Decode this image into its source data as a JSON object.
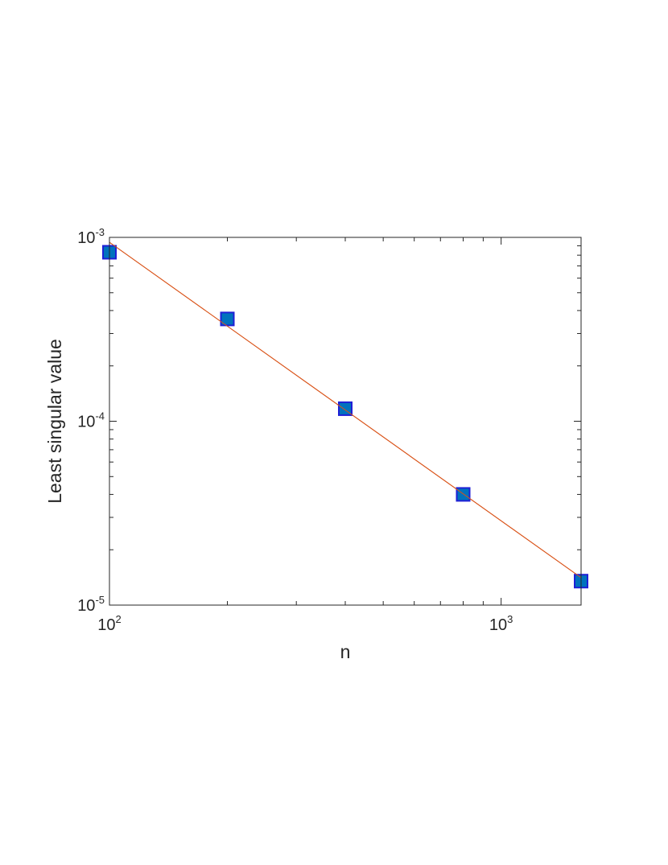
{
  "chart_data": {
    "type": "scatter",
    "xlabel": "n",
    "ylabel": "Least singular value",
    "xscale": "log",
    "yscale": "log",
    "xlim": [
      100,
      1600
    ],
    "ylim": [
      1e-05,
      0.001
    ],
    "x_ticks": [
      {
        "value": 100,
        "base": "10",
        "exp": "2"
      },
      {
        "value": 1000,
        "base": "10",
        "exp": "3"
      }
    ],
    "y_ticks": [
      {
        "value": 0.001,
        "base": "10",
        "exp": "-3"
      },
      {
        "value": 0.0001,
        "base": "10",
        "exp": "-4"
      },
      {
        "value": 1e-05,
        "base": "10",
        "exp": "-5"
      }
    ],
    "grid": false,
    "series": [
      {
        "kind": "markers",
        "marker": "square",
        "x": [
          100,
          200,
          400,
          800,
          1600
        ],
        "y": [
          0.00083,
          0.00036,
          0.000117,
          4e-05,
          1.35e-05
        ],
        "color": "#0072BD",
        "edge_color": "#1f1fd6"
      },
      {
        "kind": "line",
        "x": [
          100,
          1600
        ],
        "y": [
          0.00094,
          1.41e-05
        ],
        "color": "#D95319"
      }
    ]
  },
  "colors": {
    "axis": "#262626",
    "marker_fill": "#0072BD",
    "marker_edge": "#1f1fd6",
    "fit_line": "#D95319"
  }
}
